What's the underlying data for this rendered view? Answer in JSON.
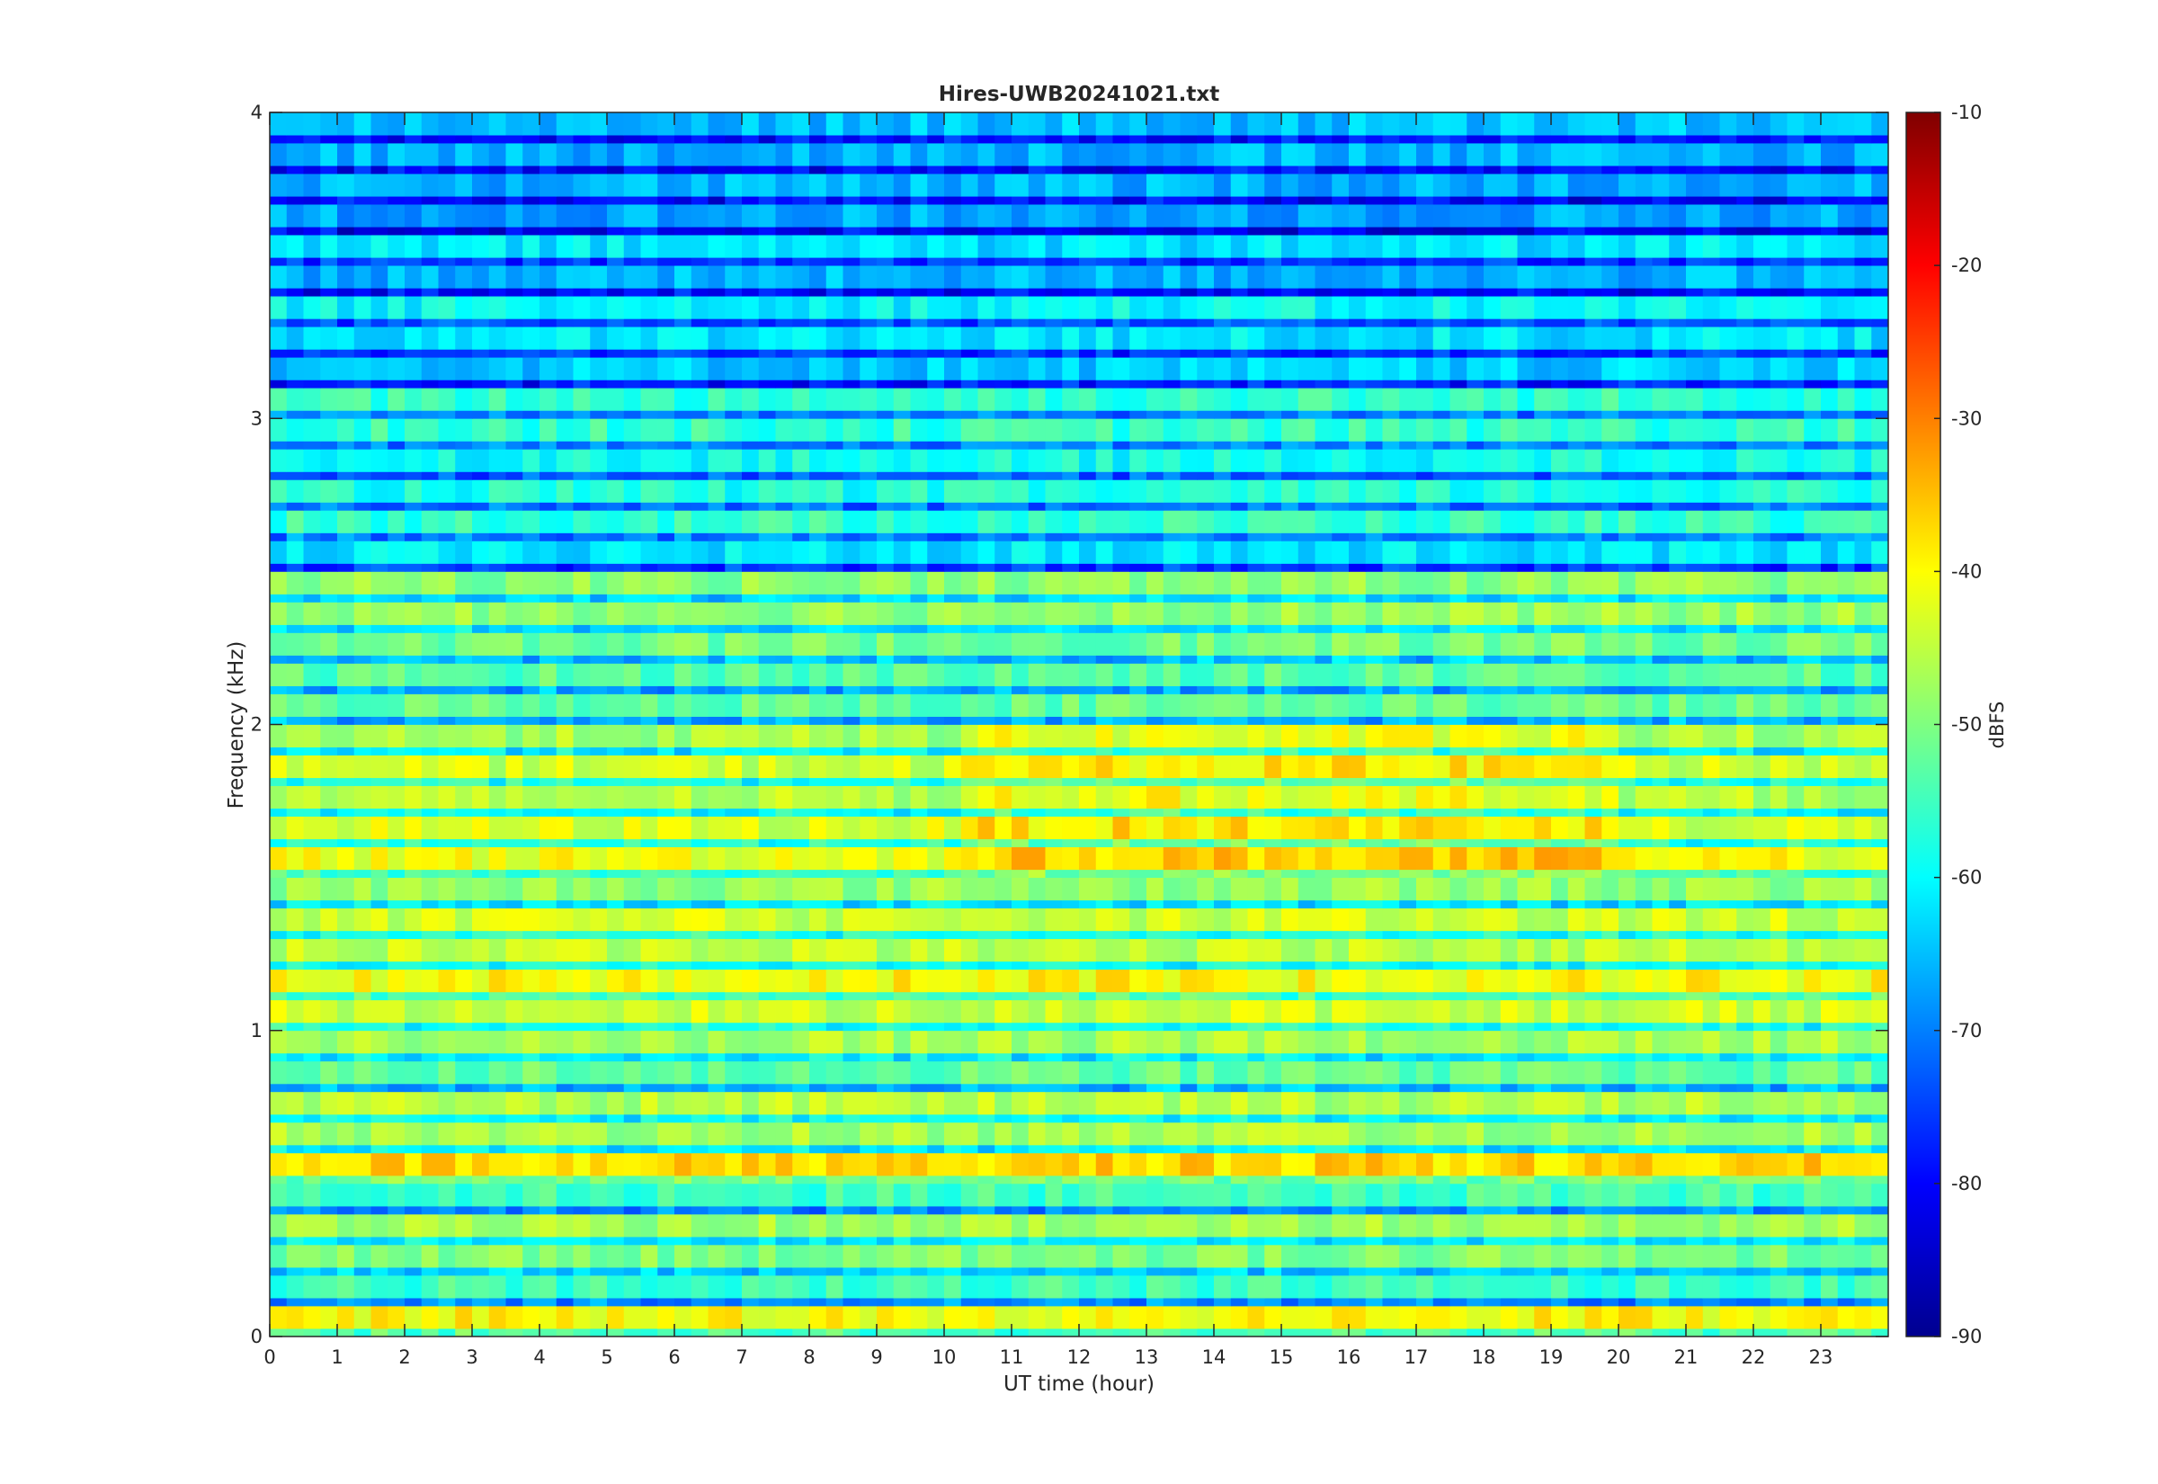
{
  "chart_data": {
    "type": "heatmap",
    "title": "Hires-UWB20241021.txt",
    "xlabel": "UT time (hour)",
    "ylabel": "Frequency (kHz)",
    "colorbar_label": "dBFS",
    "xlim": [
      0,
      24
    ],
    "ylim": [
      0,
      4
    ],
    "clim": [
      -90,
      -10
    ],
    "colormap": "jet",
    "x_ticks": [
      0,
      1,
      2,
      3,
      4,
      5,
      6,
      7,
      8,
      9,
      10,
      11,
      12,
      13,
      14,
      15,
      16,
      17,
      18,
      19,
      20,
      21,
      22,
      23
    ],
    "x_tick_labels": [
      "0",
      "1",
      "2",
      "3",
      "4",
      "5",
      "6",
      "7",
      "8",
      "9",
      "10",
      "11",
      "12",
      "13",
      "14",
      "15",
      "16",
      "17",
      "18",
      "19",
      "20",
      "21",
      "22",
      "23"
    ],
    "y_ticks": [
      0,
      1,
      2,
      3,
      4
    ],
    "y_tick_labels": [
      "0",
      "1",
      "2",
      "3",
      "4"
    ],
    "colorbar_ticks": [
      -90,
      -80,
      -70,
      -60,
      -50,
      -40,
      -30,
      -20,
      -10
    ],
    "colorbar_tick_labels": [
      "-90",
      "-80",
      "-70",
      "-60",
      "-50",
      "-40",
      "-30",
      "-20",
      "-10"
    ],
    "grid": false,
    "frequency_bands_khz": [
      {
        "f": 0.05,
        "level_db": -40
      },
      {
        "f": 0.15,
        "level_db": -55
      },
      {
        "f": 0.25,
        "level_db": -50
      },
      {
        "f": 0.35,
        "level_db": -47
      },
      {
        "f": 0.45,
        "level_db": -55
      },
      {
        "f": 0.55,
        "level_db": -37
      },
      {
        "f": 0.65,
        "level_db": -47
      },
      {
        "f": 0.75,
        "level_db": -46
      },
      {
        "f": 0.85,
        "level_db": -52
      },
      {
        "f": 0.95,
        "level_db": -47
      },
      {
        "f": 1.05,
        "level_db": -44
      },
      {
        "f": 1.15,
        "level_db": -40
      },
      {
        "f": 1.25,
        "level_db": -45
      },
      {
        "f": 1.35,
        "level_db": -44
      },
      {
        "f": 1.45,
        "level_db": -48
      },
      {
        "f": 1.55,
        "level_db": -41
      },
      {
        "f": 1.65,
        "level_db": -43
      },
      {
        "f": 1.75,
        "level_db": -46
      },
      {
        "f": 1.85,
        "level_db": -44
      },
      {
        "f": 1.95,
        "level_db": -47
      },
      {
        "f": 2.05,
        "level_db": -52
      },
      {
        "f": 2.15,
        "level_db": -53
      },
      {
        "f": 2.25,
        "level_db": -51
      },
      {
        "f": 2.35,
        "level_db": -48
      },
      {
        "f": 2.45,
        "level_db": -49
      },
      {
        "f": 2.55,
        "level_db": -62
      },
      {
        "f": 2.65,
        "level_db": -56
      },
      {
        "f": 2.75,
        "level_db": -58
      },
      {
        "f": 2.85,
        "level_db": -59
      },
      {
        "f": 2.95,
        "level_db": -56
      },
      {
        "f": 3.05,
        "level_db": -56
      },
      {
        "f": 3.15,
        "level_db": -64
      },
      {
        "f": 3.25,
        "level_db": -62
      },
      {
        "f": 3.35,
        "level_db": -60
      },
      {
        "f": 3.45,
        "level_db": -66
      },
      {
        "f": 3.55,
        "level_db": -62
      },
      {
        "f": 3.65,
        "level_db": -67
      },
      {
        "f": 3.75,
        "level_db": -66
      },
      {
        "f": 3.85,
        "level_db": -66
      },
      {
        "f": 3.95,
        "level_db": -65
      }
    ]
  }
}
